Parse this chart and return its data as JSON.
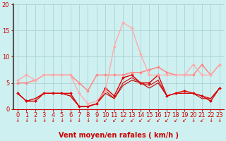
{
  "title": "",
  "xlabel": "Vent moyen/en rafales ( km/h )",
  "bg_color": "#cff0f0",
  "grid_color": "#aad4d4",
  "spine_left_color": "#555555",
  "x": [
    0,
    1,
    2,
    3,
    4,
    5,
    6,
    7,
    8,
    9,
    10,
    11,
    12,
    13,
    14,
    15,
    16,
    17,
    18,
    19,
    20,
    21,
    22,
    23
  ],
  "ylim": [
    0,
    20
  ],
  "yticks": [
    0,
    5,
    10,
    15,
    20
  ],
  "series": [
    {
      "y": [
        3.0,
        1.5,
        1.5,
        3.0,
        3.0,
        3.0,
        3.0,
        0.5,
        0.5,
        1.0,
        4.0,
        2.5,
        6.0,
        6.5,
        5.0,
        5.0,
        6.5,
        2.5,
        3.0,
        3.5,
        3.0,
        2.5,
        1.5,
        4.0
      ],
      "color": "#dd0000",
      "lw": 1.0,
      "marker": "D",
      "ms": 2.0,
      "zorder": 5
    },
    {
      "y": [
        3.0,
        1.5,
        2.0,
        3.0,
        3.0,
        3.0,
        2.5,
        0.5,
        0.5,
        1.0,
        3.5,
        2.0,
        5.0,
        6.0,
        5.0,
        4.5,
        5.5,
        2.5,
        3.0,
        3.0,
        3.0,
        2.5,
        2.0,
        4.0
      ],
      "color": "#dd0000",
      "lw": 0.8,
      "marker": null,
      "ms": 0,
      "zorder": 4
    },
    {
      "y": [
        3.0,
        1.5,
        2.0,
        3.0,
        3.0,
        3.0,
        2.5,
        0.5,
        0.5,
        1.0,
        3.0,
        2.0,
        4.5,
        5.5,
        5.0,
        4.0,
        5.0,
        2.5,
        3.0,
        3.0,
        3.0,
        2.0,
        2.0,
        4.0
      ],
      "color": "#bb0000",
      "lw": 0.8,
      "marker": null,
      "ms": 0,
      "zorder": 3
    },
    {
      "y": [
        5.0,
        5.0,
        5.5,
        6.5,
        6.5,
        6.5,
        6.5,
        5.0,
        3.5,
        6.5,
        6.5,
        6.5,
        6.5,
        7.0,
        7.0,
        7.5,
        8.0,
        7.0,
        6.5,
        6.5,
        6.5,
        8.5,
        6.5,
        8.5
      ],
      "color": "#ff8888",
      "lw": 1.0,
      "marker": "D",
      "ms": 2.0,
      "zorder": 5
    },
    {
      "y": [
        5.0,
        5.0,
        5.5,
        6.5,
        6.5,
        6.5,
        6.5,
        5.0,
        3.5,
        6.5,
        6.5,
        6.5,
        6.5,
        7.0,
        7.0,
        7.5,
        8.0,
        7.0,
        6.5,
        6.5,
        6.5,
        8.5,
        6.5,
        8.5
      ],
      "color": "#ff9999",
      "lw": 0.8,
      "marker": null,
      "ms": 0,
      "zorder": 4
    },
    {
      "y": [
        5.5,
        6.5,
        5.5,
        6.5,
        6.5,
        6.5,
        6.5,
        3.0,
        1.0,
        1.5,
        3.5,
        12.0,
        16.5,
        15.5,
        10.5,
        6.5,
        6.5,
        6.5,
        6.5,
        6.5,
        8.5,
        6.5,
        6.5,
        8.5
      ],
      "color": "#ffaaaa",
      "lw": 1.0,
      "marker": "D",
      "ms": 2.0,
      "zorder": 5
    }
  ],
  "arrow_color": "#cc0000",
  "xlabel_color": "#cc0000",
  "ytick_color": "#cc0000",
  "xtick_color": "#cc0000",
  "tick_fontsize": 6,
  "xlabel_fontsize": 7
}
